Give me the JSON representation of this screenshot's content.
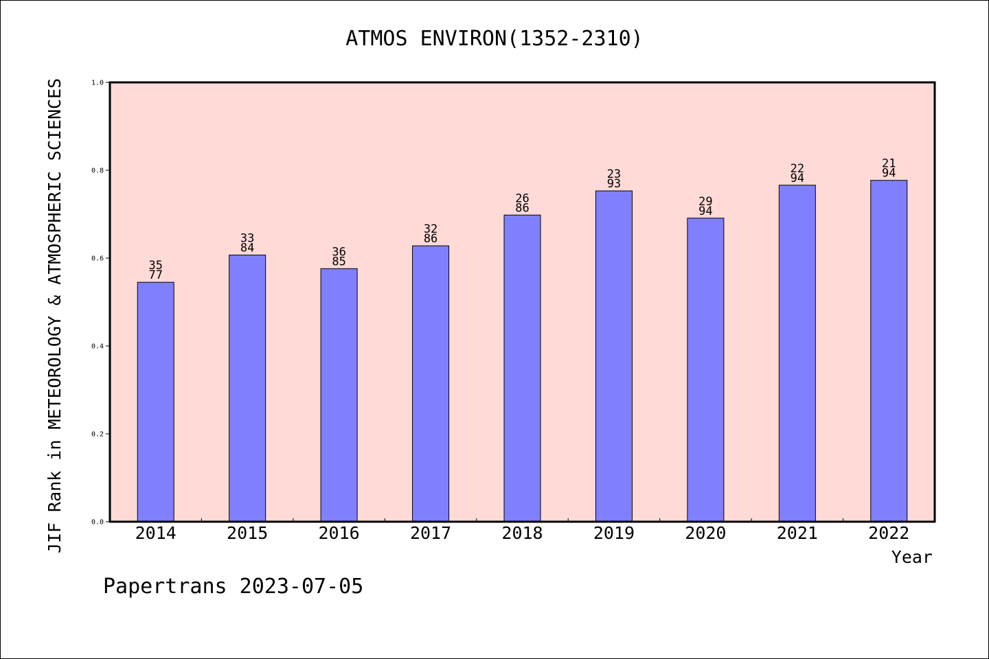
{
  "chart_data": {
    "type": "bar",
    "title": "ATMOS ENVIRON(1352-2310)",
    "xlabel": "Year",
    "ylabel": "JIF Rank in METEOROLOGY & ATMOSPHERIC SCIENCES",
    "ylim": [
      0.0,
      1.0
    ],
    "yticks": [
      "0.0",
      "0.2",
      "0.4",
      "0.6",
      "0.8",
      "1.0"
    ],
    "categories": [
      "2014",
      "2015",
      "2016",
      "2017",
      "2018",
      "2019",
      "2020",
      "2021",
      "2022"
    ],
    "values": [
      0.545,
      0.607,
      0.576,
      0.628,
      0.698,
      0.753,
      0.691,
      0.766,
      0.777
    ],
    "rank": [
      "35",
      "33",
      "36",
      "32",
      "26",
      "23",
      "29",
      "22",
      "21"
    ],
    "total": [
      "77",
      "84",
      "85",
      "86",
      "86",
      "93",
      "94",
      "94",
      "94"
    ],
    "grid": false,
    "colors": {
      "plot_background": "#ffdad7",
      "bar_fill": "#8080ff",
      "bar_stroke": "#000000"
    }
  },
  "footer": "Papertrans 2023-07-05"
}
